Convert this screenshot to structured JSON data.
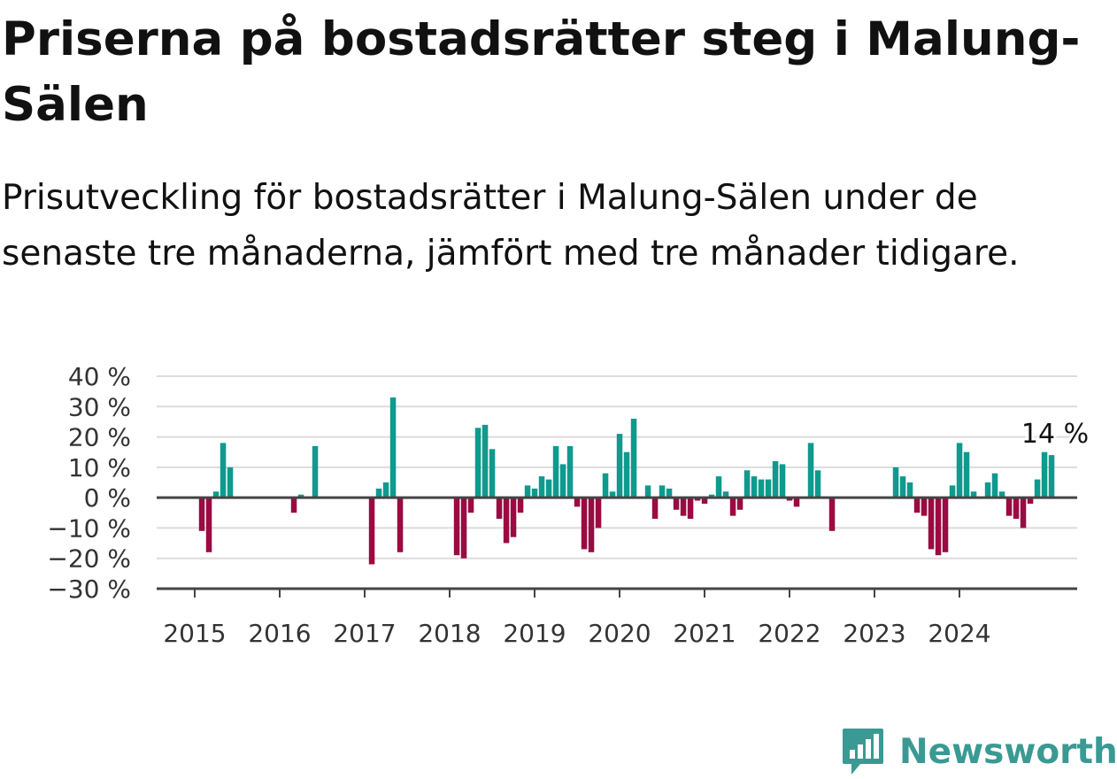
{
  "title": "Priserna på bostadsrätter steg i Malung-Sälen",
  "subtitle": "Prisutveckling för bostadsrätter i Malung-Sälen under de senaste tre månaderna, jämfört med tre månader tidigare.",
  "brand": {
    "name": "Newsworthy",
    "logo_icon": "newsworthy-logo-icon"
  },
  "colors": {
    "positive": "#0f9a8e",
    "negative": "#9b0a42",
    "grid": "#dcdcdc",
    "axis": "#444444",
    "brand": "#3a9a93"
  },
  "chart_data": {
    "type": "bar",
    "ylim": [
      -30,
      40
    ],
    "yticks": [
      -30,
      -20,
      -10,
      0,
      10,
      20,
      30,
      40
    ],
    "ytick_labels": [
      "−30 %",
      "−20 %",
      "−10 %",
      "0 %",
      "10 %",
      "20 %",
      "30 %",
      "40 %"
    ],
    "xtick_labels": [
      "2015",
      "2016",
      "2017",
      "2018",
      "2019",
      "2020",
      "2021",
      "2022",
      "2023",
      "2024"
    ],
    "last_value_label": "14 %",
    "grid": true,
    "series": [
      {
        "start": "2015-01",
        "frequency": "monthly",
        "values": [
          0,
          -11,
          -18,
          2,
          18,
          10,
          0,
          0,
          0,
          0,
          0,
          0,
          0,
          0,
          -5,
          1,
          0,
          17,
          0,
          0,
          0,
          0,
          0,
          0,
          0,
          -22,
          3,
          5,
          33,
          -18,
          0,
          0,
          0,
          0,
          0,
          0,
          0,
          -19,
          -20,
          -5,
          23,
          24,
          16,
          -7,
          -15,
          -13,
          -5,
          4,
          3,
          7,
          6,
          17,
          11,
          17,
          -3,
          -17,
          -18,
          -10,
          8,
          2,
          21,
          15,
          26,
          0,
          4,
          -7,
          4,
          3,
          -4,
          -6,
          -7,
          -1,
          -2,
          1,
          7,
          2,
          -6,
          -4,
          9,
          7,
          6,
          6,
          12,
          11,
          -1,
          -3,
          0,
          18,
          9,
          0,
          -11,
          0,
          0,
          0,
          0,
          0,
          0,
          0,
          0,
          10,
          7,
          5,
          -5,
          -6,
          -17,
          -19,
          -18,
          4,
          18,
          15,
          2,
          0,
          5,
          8,
          2,
          -6,
          -7,
          -10,
          -2,
          6,
          15,
          14
        ]
      }
    ]
  }
}
